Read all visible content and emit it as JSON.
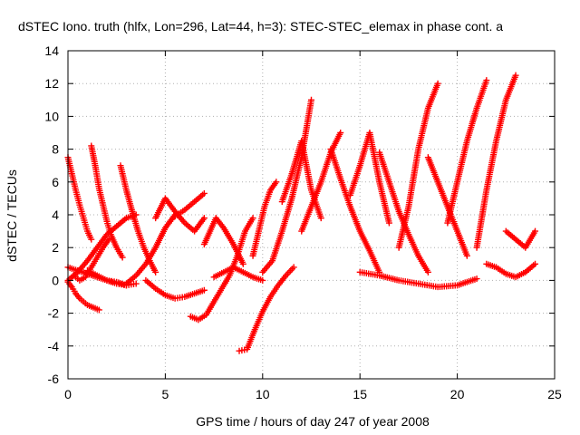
{
  "chart_data": {
    "type": "scatter",
    "title": "dSTEC Iono. truth (hlfx, Lon=296, Lat=44, h=3): STEC-STEC_elemax in phase cont. a",
    "xlabel": "GPS time / hours of day 247 of year 2008",
    "ylabel": "dSTEC  / TECUs",
    "xlim": [
      0,
      25
    ],
    "ylim": [
      -6,
      14
    ],
    "xticks": [
      0,
      5,
      10,
      15,
      20,
      25
    ],
    "yticks": [
      -6,
      -4,
      -2,
      0,
      2,
      4,
      6,
      8,
      10,
      12,
      14
    ],
    "xtick_labels": [
      "0",
      "5",
      "10",
      "15",
      "20",
      "25"
    ],
    "ytick_labels": [
      "-6",
      "-4",
      "-2",
      "0",
      "2",
      "4",
      "6",
      "8",
      "10",
      "12",
      "14"
    ],
    "grid": true,
    "marker": "plus",
    "color": "#ff0000",
    "series": [
      {
        "x": [
          0.0,
          0.2,
          0.4,
          0.6,
          0.8,
          1.0,
          1.2,
          1.4,
          1.6
        ],
        "y": [
          -0.1,
          -0.4,
          -0.8,
          -1.1,
          -1.3,
          -1.5,
          -1.6,
          -1.7,
          -1.8
        ]
      },
      {
        "x": [
          0.0,
          0.2,
          0.4,
          0.6,
          0.8,
          1.0,
          1.2
        ],
        "y": [
          7.5,
          6.5,
          5.5,
          4.6,
          3.8,
          3.0,
          2.5
        ]
      },
      {
        "x": [
          0.0,
          0.5,
          1.0,
          1.5,
          2.0,
          2.5,
          3.0
        ],
        "y": [
          0.8,
          0.6,
          0.4,
          0.2,
          0.0,
          -0.2,
          -0.3
        ]
      },
      {
        "x": [
          0.0,
          0.5,
          1.0,
          1.5,
          2.0,
          2.5,
          3.0,
          3.5
        ],
        "y": [
          0.0,
          0.5,
          1.2,
          2.0,
          2.8,
          3.3,
          3.8,
          4.0
        ]
      },
      {
        "x": [
          0.3,
          0.6,
          0.9,
          1.2,
          1.5,
          1.8,
          2.1
        ],
        "y": [
          0.3,
          0.0,
          0.2,
          0.8,
          1.4,
          2.0,
          2.5
        ]
      },
      {
        "x": [
          1.2,
          1.4,
          1.6,
          1.8,
          2.0,
          2.2,
          2.5,
          2.8
        ],
        "y": [
          8.2,
          7.0,
          5.6,
          4.6,
          3.6,
          2.8,
          2.0,
          1.4
        ]
      },
      {
        "x": [
          1.0,
          1.5,
          2.0,
          2.5,
          3.0,
          3.5
        ],
        "y": [
          0.6,
          0.3,
          0.0,
          -0.1,
          -0.3,
          -0.2
        ]
      },
      {
        "x": [
          2.7,
          3.0,
          3.3,
          3.6,
          3.9,
          4.2,
          4.5
        ],
        "y": [
          7.0,
          5.5,
          4.2,
          3.0,
          2.0,
          1.2,
          0.5
        ]
      },
      {
        "x": [
          3.0,
          3.5,
          4.0,
          4.5,
          5.0,
          5.5
        ],
        "y": [
          -0.2,
          0.3,
          1.0,
          2.0,
          3.2,
          4.0
        ]
      },
      {
        "x": [
          4.5,
          5.0,
          5.5,
          6.0,
          6.5,
          7.0
        ],
        "y": [
          3.8,
          5.0,
          4.2,
          3.5,
          3.0,
          3.8
        ]
      },
      {
        "x": [
          4.0,
          4.5,
          5.0,
          5.5,
          6.0,
          6.5,
          7.0
        ],
        "y": [
          0.0,
          -0.5,
          -0.9,
          -1.1,
          -1.0,
          -0.8,
          -0.6
        ]
      },
      {
        "x": [
          5.5,
          6.0,
          6.5,
          7.0
        ],
        "y": [
          3.9,
          4.3,
          4.8,
          5.3
        ]
      },
      {
        "x": [
          6.3,
          6.7,
          7.1,
          7.5,
          7.9,
          8.3,
          8.7,
          9.1,
          9.5
        ],
        "y": [
          -2.2,
          -2.4,
          -2.1,
          -1.3,
          -0.5,
          0.3,
          1.5,
          3.0,
          3.8
        ]
      },
      {
        "x": [
          7.0,
          7.3,
          7.6,
          8.0,
          8.5,
          9.0
        ],
        "y": [
          2.2,
          3.0,
          3.8,
          3.2,
          2.2,
          1.0
        ]
      },
      {
        "x": [
          7.5,
          8.0,
          8.5,
          9.0,
          9.5,
          10.0
        ],
        "y": [
          0.2,
          0.5,
          0.8,
          0.5,
          0.2,
          0.0
        ]
      },
      {
        "x": [
          8.8,
          9.2,
          9.6,
          10.0,
          10.4,
          10.8,
          11.2,
          11.6
        ],
        "y": [
          -4.3,
          -4.2,
          -3.0,
          -1.9,
          -1.0,
          -0.3,
          0.3,
          0.8
        ]
      },
      {
        "x": [
          9.5,
          9.8,
          10.1,
          10.4,
          10.7
        ],
        "y": [
          1.5,
          3.0,
          4.5,
          5.5,
          6.0
        ]
      },
      {
        "x": [
          10.0,
          10.5,
          11.0,
          11.5,
          12.0,
          12.5
        ],
        "y": [
          0.5,
          1.2,
          3.0,
          5.0,
          7.5,
          11.0
        ]
      },
      {
        "x": [
          11.0,
          11.5,
          12.0,
          12.5,
          13.0
        ],
        "y": [
          4.8,
          6.5,
          8.5,
          5.5,
          3.8
        ]
      },
      {
        "x": [
          12.0,
          12.5,
          13.0,
          13.5,
          14.0
        ],
        "y": [
          3.0,
          4.5,
          6.0,
          7.8,
          9.0
        ]
      },
      {
        "x": [
          13.5,
          14.0,
          14.5,
          15.0,
          15.5,
          16.0
        ],
        "y": [
          8.0,
          6.2,
          4.5,
          3.0,
          1.8,
          0.5
        ]
      },
      {
        "x": [
          14.5,
          15.0,
          15.5,
          16.0,
          16.5
        ],
        "y": [
          5.2,
          7.0,
          9.0,
          6.0,
          3.5
        ]
      },
      {
        "x": [
          16.0,
          16.5,
          17.0,
          17.5,
          18.0,
          18.5
        ],
        "y": [
          7.8,
          6.0,
          4.2,
          2.8,
          1.5,
          0.5
        ]
      },
      {
        "x": [
          17.0,
          17.5,
          18.0,
          18.5,
          19.0
        ],
        "y": [
          2.0,
          4.5,
          8.0,
          10.5,
          12.0
        ]
      },
      {
        "x": [
          18.5,
          19.0,
          19.5,
          20.0,
          20.5
        ],
        "y": [
          7.5,
          6.0,
          4.5,
          3.0,
          1.5
        ]
      },
      {
        "x": [
          19.5,
          20.0,
          20.5,
          21.0,
          21.5
        ],
        "y": [
          3.5,
          6.0,
          8.5,
          10.5,
          12.2
        ]
      },
      {
        "x": [
          21.0,
          21.5,
          22.0,
          22.5,
          23.0
        ],
        "y": [
          2.0,
          5.5,
          8.5,
          11.0,
          12.5
        ]
      },
      {
        "x": [
          21.5,
          22.0,
          22.5,
          23.0,
          23.5,
          24.0
        ],
        "y": [
          1.0,
          0.8,
          0.4,
          0.2,
          0.5,
          1.0
        ]
      },
      {
        "x": [
          22.5,
          23.0,
          23.5,
          24.0
        ],
        "y": [
          3.0,
          2.5,
          2.0,
          3.0
        ]
      },
      {
        "x": [
          15.0,
          16.0,
          17.0,
          18.0,
          19.0,
          20.0,
          21.0
        ],
        "y": [
          0.5,
          0.3,
          0.0,
          -0.2,
          -0.4,
          -0.3,
          0.1
        ]
      }
    ]
  }
}
